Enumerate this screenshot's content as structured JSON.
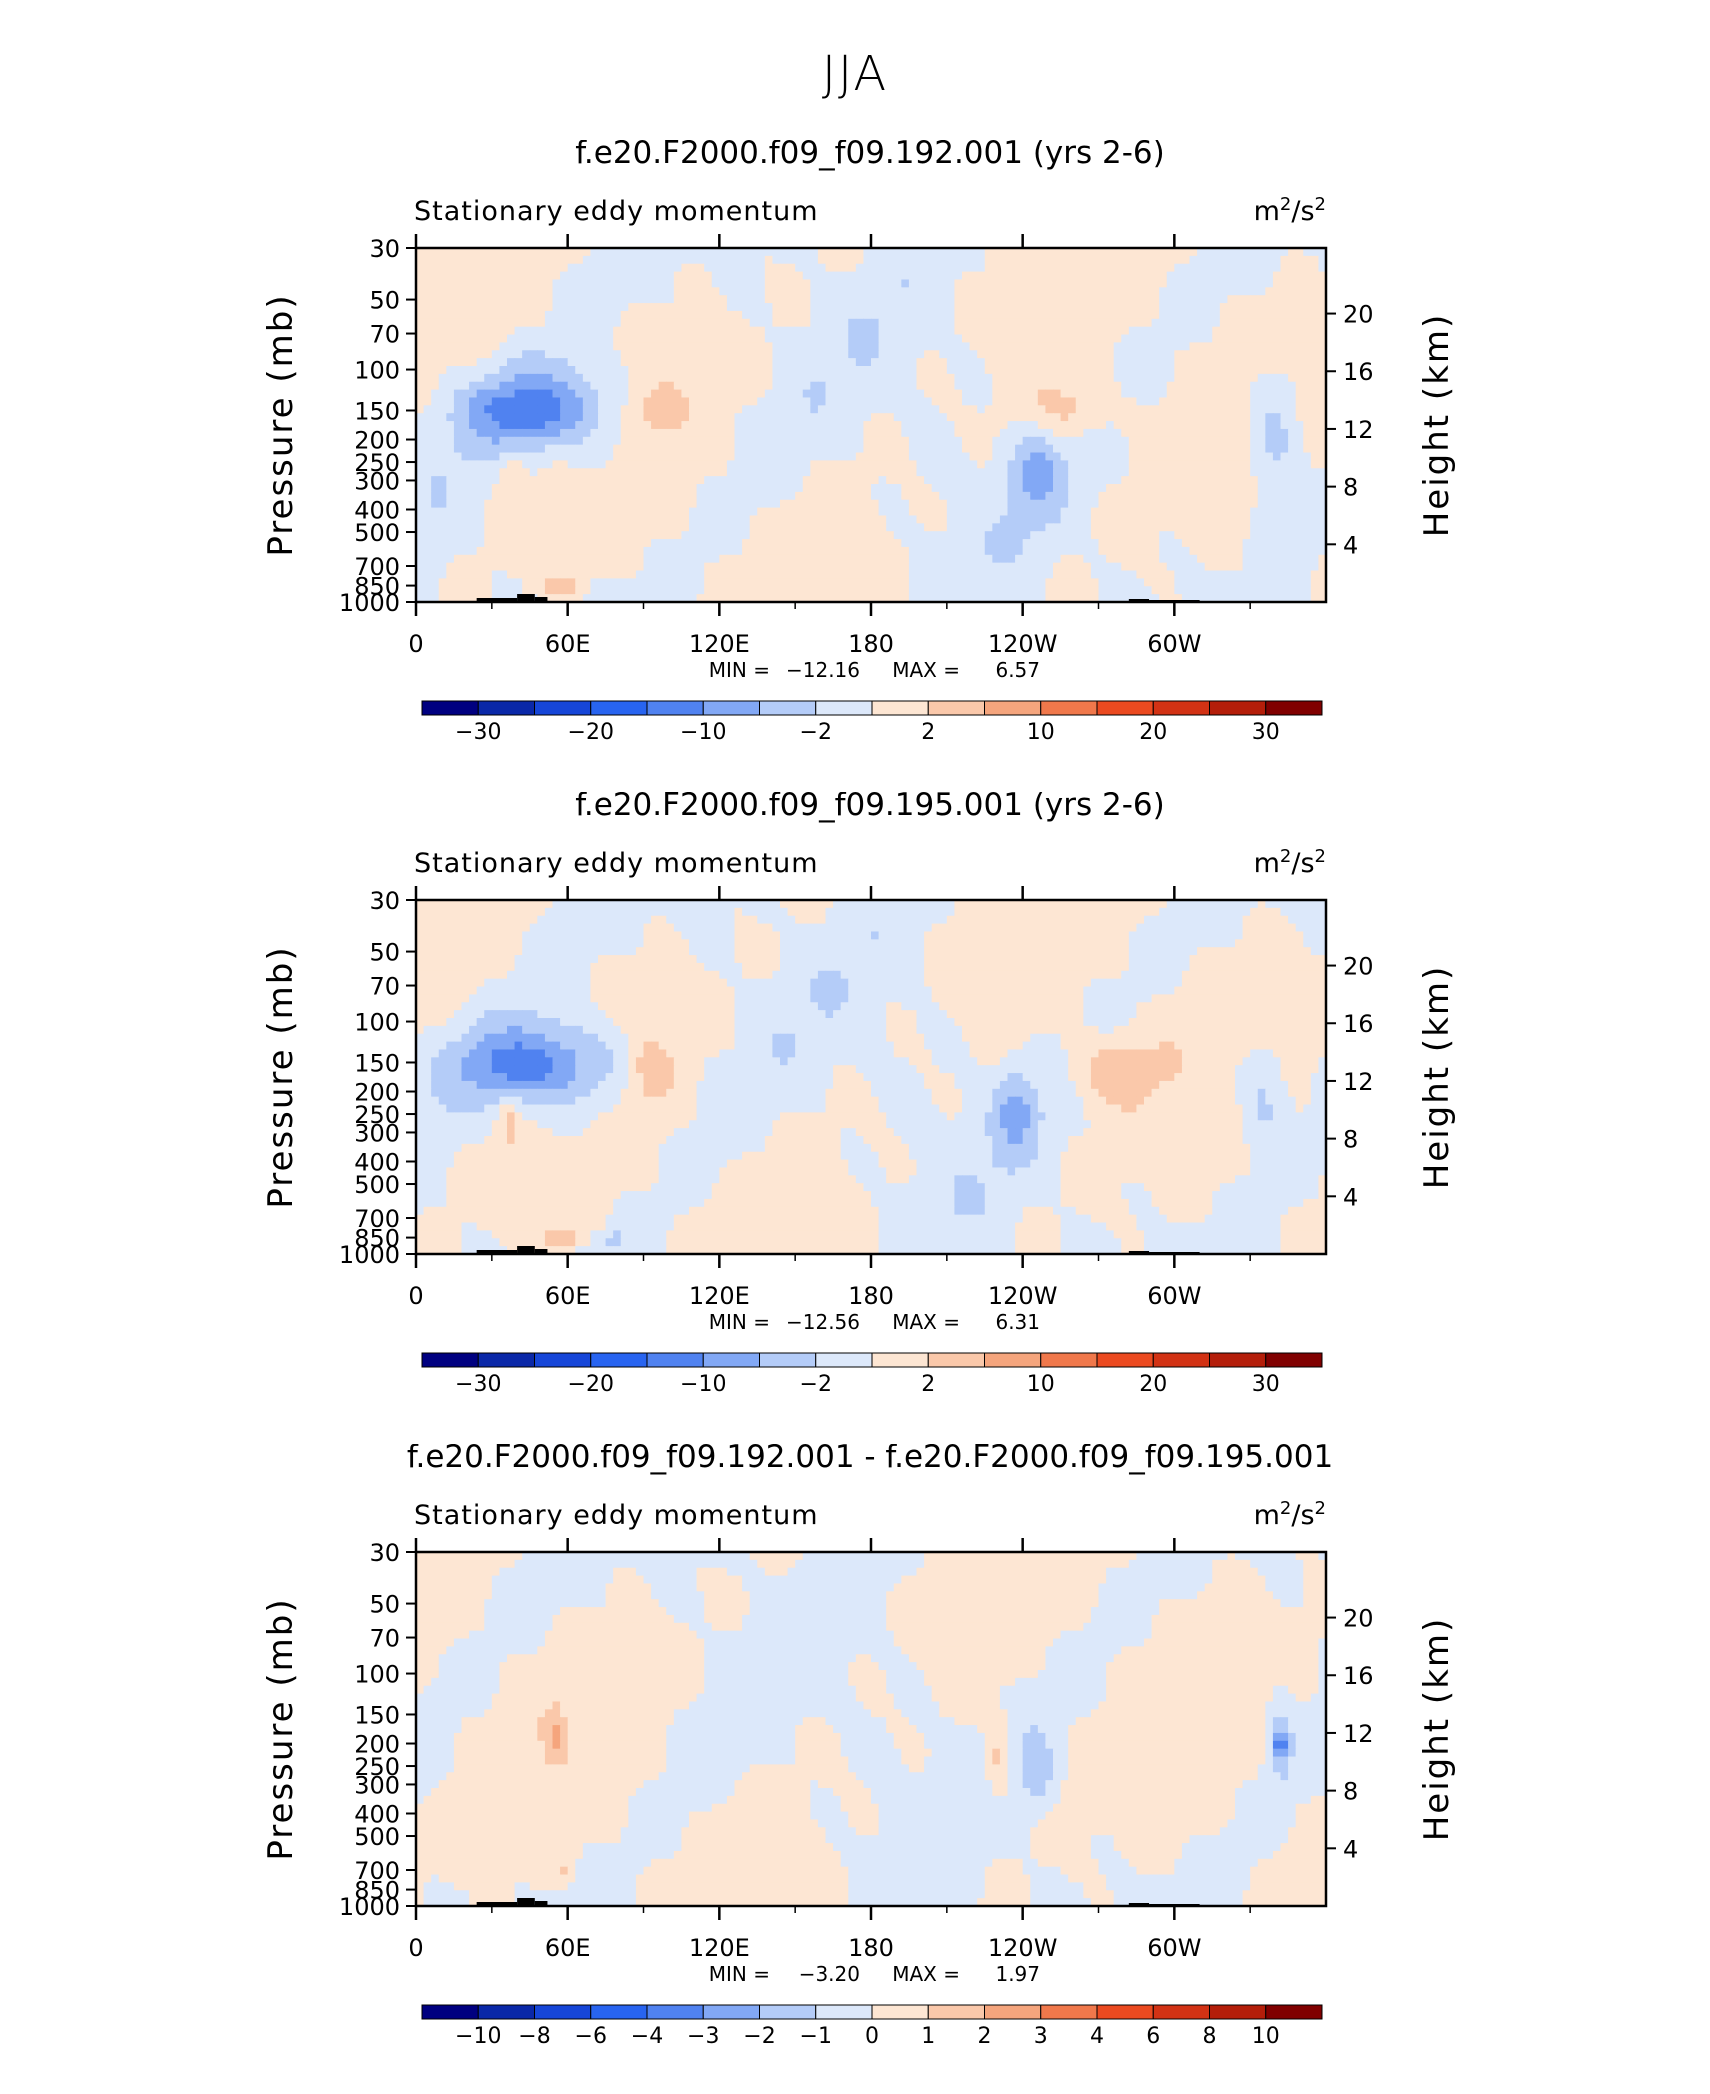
{
  "page_title": "JJA",
  "colors": {
    "cool": [
      "#000080",
      "#0a28a8",
      "#1646d8",
      "#2864f0",
      "#5082f0",
      "#82a8f5",
      "#b4ccf8",
      "#dce8fa"
    ],
    "warm": [
      "#fde6d3",
      "#fac8aa",
      "#f5a57d",
      "#f0784b",
      "#eb4a20",
      "#d23214",
      "#b41e0a",
      "#800000"
    ],
    "land": "#000000"
  },
  "chart_data": [
    {
      "type": "heatmap",
      "title": "f.e20.F2000.f09_f09.192.001 (yrs 2-6)",
      "left_label": "Stationary eddy momentum",
      "units_base": "m",
      "units_exp": "2",
      "units_mid": "/s",
      "units_exp2": "2",
      "ylabel": "Pressure (mb)",
      "ylabel_right": "Height (km)",
      "y_ticks": [
        "30",
        "50",
        "70",
        "100",
        "150",
        "200",
        "250",
        "300",
        "400",
        "500",
        "700",
        "850",
        "1000"
      ],
      "y_tick_values": [
        30,
        50,
        70,
        100,
        150,
        200,
        250,
        300,
        400,
        500,
        700,
        850,
        1000
      ],
      "y_right_ticks": [
        "20",
        "16",
        "12",
        "8",
        "4"
      ],
      "y_right_values": [
        20,
        16,
        12,
        8,
        4
      ],
      "ylim": [
        1000,
        30
      ],
      "x_ticks": [
        "0",
        "60E",
        "120E",
        "180",
        "120W",
        "60W"
      ],
      "x_tick_values": [
        0,
        60,
        120,
        180,
        240,
        300
      ],
      "xlim": [
        0,
        360
      ],
      "min_label": "MIN =",
      "min_value": "−12.16",
      "max_label": "MAX =",
      "max_value": "6.57",
      "colorbar_labels": [
        "−30",
        "−20",
        "−10",
        "−2",
        "2",
        "10",
        "20",
        "30"
      ],
      "features": [
        {
          "x": 50,
          "p": 150,
          "rx": 32,
          "ry": 0.13,
          "v": -7
        },
        {
          "x": 38,
          "p": 150,
          "rx": 16,
          "ry": 0.06,
          "v": -4
        },
        {
          "x": 48,
          "p": 150,
          "rx": 12,
          "ry": 0.05,
          "v": -3
        },
        {
          "x": 38,
          "p": 270,
          "rx": 5,
          "ry": 0.07,
          "v": 3.2
        },
        {
          "x": 95,
          "p": 150,
          "rx": 12,
          "ry": 0.09,
          "v": 3.2
        },
        {
          "x": 258,
          "p": 150,
          "rx": 20,
          "ry": 0.09,
          "v": 3.4
        },
        {
          "x": 245,
          "p": 270,
          "rx": 9,
          "ry": 0.13,
          "v": -4.5
        },
        {
          "x": 340,
          "p": 200,
          "rx": 11,
          "ry": 0.2,
          "v": -3.8
        },
        {
          "x": 57,
          "p": 860,
          "rx": 8,
          "ry": 0.025,
          "v": 4
        },
        {
          "x": 78,
          "p": 860,
          "rx": 6,
          "ry": 0.02,
          "v": -2.6
        }
      ]
    },
    {
      "type": "heatmap",
      "title": "f.e20.F2000.f09_f09.195.001 (yrs 2-6)",
      "left_label": "Stationary eddy momentum",
      "units_base": "m",
      "units_exp": "2",
      "units_mid": "/s",
      "units_exp2": "2",
      "ylabel": "Pressure (mb)",
      "ylabel_right": "Height (km)",
      "y_ticks": [
        "30",
        "50",
        "70",
        "100",
        "150",
        "200",
        "250",
        "300",
        "400",
        "500",
        "700",
        "850",
        "1000"
      ],
      "y_tick_values": [
        30,
        50,
        70,
        100,
        150,
        200,
        250,
        300,
        400,
        500,
        700,
        850,
        1000
      ],
      "y_right_ticks": [
        "20",
        "16",
        "12",
        "8",
        "4"
      ],
      "y_right_values": [
        20,
        16,
        12,
        8,
        4
      ],
      "ylim": [
        1000,
        30
      ],
      "x_ticks": [
        "0",
        "60E",
        "120E",
        "180",
        "120W",
        "60W"
      ],
      "x_tick_values": [
        0,
        60,
        120,
        180,
        240,
        300
      ],
      "xlim": [
        0,
        360
      ],
      "min_label": "MIN =",
      "min_value": "−12.56",
      "max_label": "MAX =",
      "max_value": "6.31",
      "colorbar_labels": [
        "−30",
        "−20",
        "−10",
        "−2",
        "2",
        "10",
        "20",
        "30"
      ],
      "features": [
        {
          "x": 50,
          "p": 155,
          "rx": 34,
          "ry": 0.14,
          "v": -7
        },
        {
          "x": 38,
          "p": 150,
          "rx": 16,
          "ry": 0.06,
          "v": -4
        },
        {
          "x": 48,
          "p": 155,
          "rx": 12,
          "ry": 0.05,
          "v": -3
        },
        {
          "x": 37,
          "p": 270,
          "rx": 5,
          "ry": 0.07,
          "v": 3.2
        },
        {
          "x": 92,
          "p": 160,
          "rx": 11,
          "ry": 0.11,
          "v": 3.4
        },
        {
          "x": 275,
          "p": 160,
          "rx": 19,
          "ry": 0.1,
          "v": 3.6
        },
        {
          "x": 237,
          "p": 240,
          "rx": 8,
          "ry": 0.11,
          "v": -4.5
        },
        {
          "x": 335,
          "p": 210,
          "rx": 10,
          "ry": 0.16,
          "v": -3.5
        },
        {
          "x": 57,
          "p": 860,
          "rx": 8,
          "ry": 0.025,
          "v": 4
        },
        {
          "x": 78,
          "p": 860,
          "rx": 6,
          "ry": 0.02,
          "v": -2.6
        }
      ]
    },
    {
      "type": "heatmap",
      "title": "f.e20.F2000.f09_f09.192.001 - f.e20.F2000.f09_f09.195.001",
      "left_label": "Stationary eddy momentum",
      "units_base": "m",
      "units_exp": "2",
      "units_mid": "/s",
      "units_exp2": "2",
      "ylabel": "Pressure (mb)",
      "ylabel_right": "Height (km)",
      "y_ticks": [
        "30",
        "50",
        "70",
        "100",
        "150",
        "200",
        "250",
        "300",
        "400",
        "500",
        "700",
        "850",
        "1000"
      ],
      "y_tick_values": [
        30,
        50,
        70,
        100,
        150,
        200,
        250,
        300,
        400,
        500,
        700,
        850,
        1000
      ],
      "y_right_ticks": [
        "20",
        "16",
        "12",
        "8",
        "4"
      ],
      "y_right_values": [
        20,
        16,
        12,
        8,
        4
      ],
      "ylim": [
        1000,
        30
      ],
      "x_ticks": [
        "0",
        "60E",
        "120E",
        "180",
        "120W",
        "60W"
      ],
      "x_tick_values": [
        0,
        60,
        120,
        180,
        240,
        300
      ],
      "xlim": [
        0,
        360
      ],
      "min_label": "MIN =",
      "min_value": "−3.20",
      "max_label": "MAX =",
      "max_value": "1.97",
      "colorbar_labels": [
        "−10",
        "−8",
        "−6",
        "−4",
        "−3",
        "−2",
        "−1",
        "0",
        "1",
        "2",
        "3",
        "4",
        "6",
        "8",
        "10"
      ],
      "features": [
        {
          "x": 55,
          "p": 185,
          "rx": 5,
          "ry": 0.08,
          "v": 1.6
        },
        {
          "x": 230,
          "p": 240,
          "rx": 5,
          "ry": 0.12,
          "v": 1.6
        },
        {
          "x": 246,
          "p": 260,
          "rx": 6,
          "ry": 0.1,
          "v": -1.6
        },
        {
          "x": 342,
          "p": 200,
          "rx": 5,
          "ry": 0.12,
          "v": -1.8
        },
        {
          "x": 342,
          "p": 200,
          "rx": 2,
          "ry": 0.03,
          "v": -3.2
        },
        {
          "x": 59,
          "p": 690,
          "rx": 2,
          "ry": 0.02,
          "v": 1.3
        }
      ]
    }
  ]
}
